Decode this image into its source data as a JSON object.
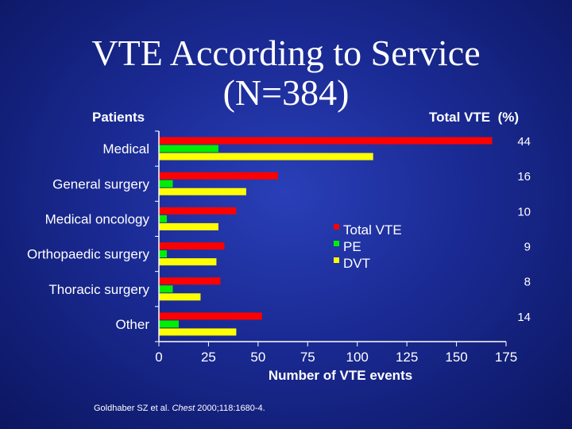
{
  "title_line1": "VTE According to Service",
  "title_line2": "(N=384)",
  "left_header": "Patients",
  "right_header": "Total VTE  (%)",
  "citation_authors": "Goldhaber SZ et al. ",
  "citation_journal": "Chest",
  "citation_rest": " 2000;118:1680-4.",
  "colors": {
    "Total VTE": "#ff0000",
    "PE": "#00ee00",
    "DVT": "#ffff00"
  },
  "chart_data": {
    "type": "bar",
    "orientation": "horizontal",
    "categories": [
      "Medical",
      "General surgery",
      "Medical oncology",
      "Orthopaedic surgery",
      "Thoracic surgery",
      "Other"
    ],
    "series": [
      {
        "name": "Total VTE",
        "values": [
          168,
          60,
          39,
          33,
          31,
          52
        ]
      },
      {
        "name": "PE",
        "values": [
          30,
          7,
          4,
          4,
          7,
          10
        ]
      },
      {
        "name": "DVT",
        "values": [
          108,
          44,
          30,
          29,
          21,
          39
        ]
      }
    ],
    "percent_labels": [
      "44",
      "16",
      "10",
      "9",
      "8",
      "14"
    ],
    "xlabel": "Number of VTE events",
    "xlim": [
      0,
      175
    ],
    "xticks": [
      "0",
      "25",
      "50",
      "75",
      "100",
      "125",
      "150",
      "175"
    ],
    "legend_position": "center-right"
  }
}
